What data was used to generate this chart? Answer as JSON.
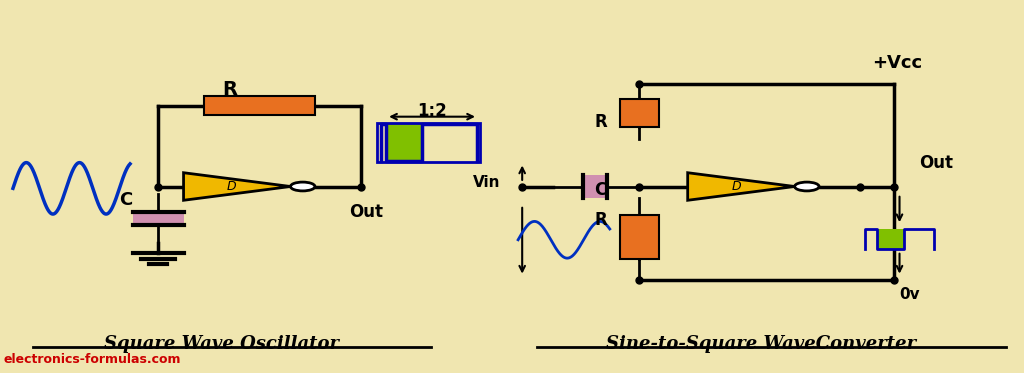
{
  "bg_color": "#f0e6b0",
  "fig_width": 10.24,
  "fig_height": 3.73,
  "colors": {
    "black": "#000000",
    "orange": "#e87020",
    "yellow_gate": "#f0b800",
    "green": "#80c000",
    "blue_dark": "#0000b0",
    "blue_line": "#0030c0",
    "pink_cap": "#d090b0",
    "white": "#ffffff",
    "red_text": "#cc0000"
  },
  "watermark": "electronics-formulas.com",
  "label_left": "Square Wave Oscillator",
  "label_right": "Sine-to-Square WaveConverter"
}
